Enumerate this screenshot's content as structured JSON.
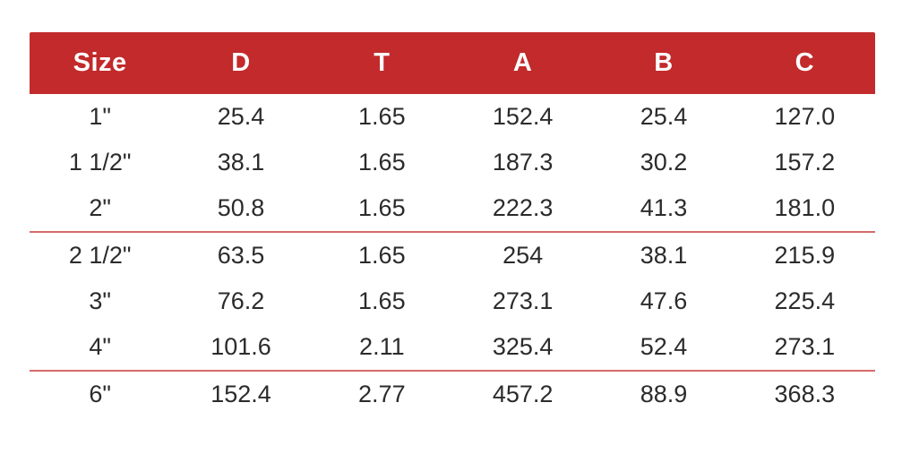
{
  "page": {
    "background": "#ffffff"
  },
  "table": {
    "header_bg": "#c22a2b",
    "header_text_color": "#ffffff",
    "body_text_color": "#2b2b2b",
    "divider_color": "#d56a6a",
    "columns": [
      "Size",
      "D",
      "T",
      "A",
      "B",
      "C"
    ],
    "rows": [
      [
        "1\"",
        "25.4",
        "1.65",
        "152.4",
        "25.4",
        "127.0"
      ],
      [
        "1 1/2\"",
        "38.1",
        "1.65",
        "187.3",
        "30.2",
        "157.2"
      ],
      [
        "2\"",
        "50.8",
        "1.65",
        "222.3",
        "41.3",
        "181.0"
      ],
      [
        "2 1/2\"",
        "63.5",
        "1.65",
        "254",
        "38.1",
        "215.9"
      ],
      [
        "3\"",
        "76.2",
        "1.65",
        "273.1",
        "47.6",
        "225.4"
      ],
      [
        "4\"",
        "101.6",
        "2.11",
        "325.4",
        "52.4",
        "273.1"
      ],
      [
        "6\"",
        "152.4",
        "2.77",
        "457.2",
        "88.9",
        "368.3"
      ]
    ],
    "group_separators_after_rows": [
      2,
      5
    ]
  }
}
